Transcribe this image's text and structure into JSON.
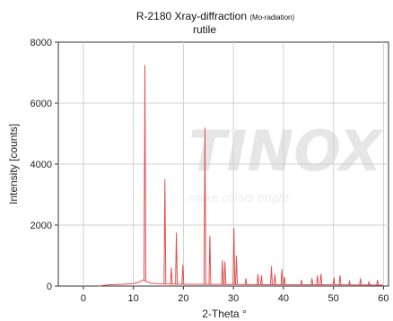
{
  "chart_data": {
    "type": "line",
    "title": "R-2180 Xray-diffraction",
    "title_note": "(Mo-radiation)",
    "subtitle": "rutile",
    "xlabel": "2-Theta °",
    "ylabel": "Intensity [counts]",
    "xlim": [
      -5,
      61
    ],
    "ylim": [
      0,
      8000
    ],
    "x_ticks": [
      0,
      10,
      20,
      30,
      40,
      50,
      60
    ],
    "y_ticks": [
      0,
      2000,
      4000,
      6000,
      8000
    ],
    "grid": true,
    "line_color": "#e05050",
    "watermark": {
      "logo": "TINOX",
      "tagline": "make colors bright"
    },
    "baseline": [
      [
        3,
        0
      ],
      [
        5,
        40
      ],
      [
        8,
        60
      ],
      [
        10,
        80
      ],
      [
        11,
        120
      ],
      [
        12,
        200
      ],
      [
        12.6,
        150
      ],
      [
        13.5,
        90
      ],
      [
        16,
        70
      ],
      [
        20,
        60
      ],
      [
        30,
        50
      ],
      [
        40,
        40
      ],
      [
        50,
        40
      ],
      [
        60,
        30
      ]
    ],
    "peaks": [
      {
        "x": 12.3,
        "y": 7250
      },
      {
        "x": 16.3,
        "y": 3500
      },
      {
        "x": 17.6,
        "y": 600
      },
      {
        "x": 18.6,
        "y": 1750
      },
      {
        "x": 19.9,
        "y": 700
      },
      {
        "x": 24.3,
        "y": 5200
      },
      {
        "x": 25.3,
        "y": 1650
      },
      {
        "x": 27.8,
        "y": 850
      },
      {
        "x": 28.3,
        "y": 800
      },
      {
        "x": 30.1,
        "y": 1900
      },
      {
        "x": 30.6,
        "y": 1000
      },
      {
        "x": 32.5,
        "y": 250
      },
      {
        "x": 34.9,
        "y": 400
      },
      {
        "x": 35.6,
        "y": 350
      },
      {
        "x": 37.6,
        "y": 650
      },
      {
        "x": 38.3,
        "y": 400
      },
      {
        "x": 39.7,
        "y": 550
      },
      {
        "x": 40.2,
        "y": 300
      },
      {
        "x": 43.6,
        "y": 200
      },
      {
        "x": 45.7,
        "y": 250
      },
      {
        "x": 46.8,
        "y": 350
      },
      {
        "x": 47.5,
        "y": 400
      },
      {
        "x": 50.1,
        "y": 280
      },
      {
        "x": 51.3,
        "y": 350
      },
      {
        "x": 53.2,
        "y": 150
      },
      {
        "x": 55.4,
        "y": 250
      },
      {
        "x": 57.1,
        "y": 150
      },
      {
        "x": 58.8,
        "y": 200
      }
    ]
  }
}
